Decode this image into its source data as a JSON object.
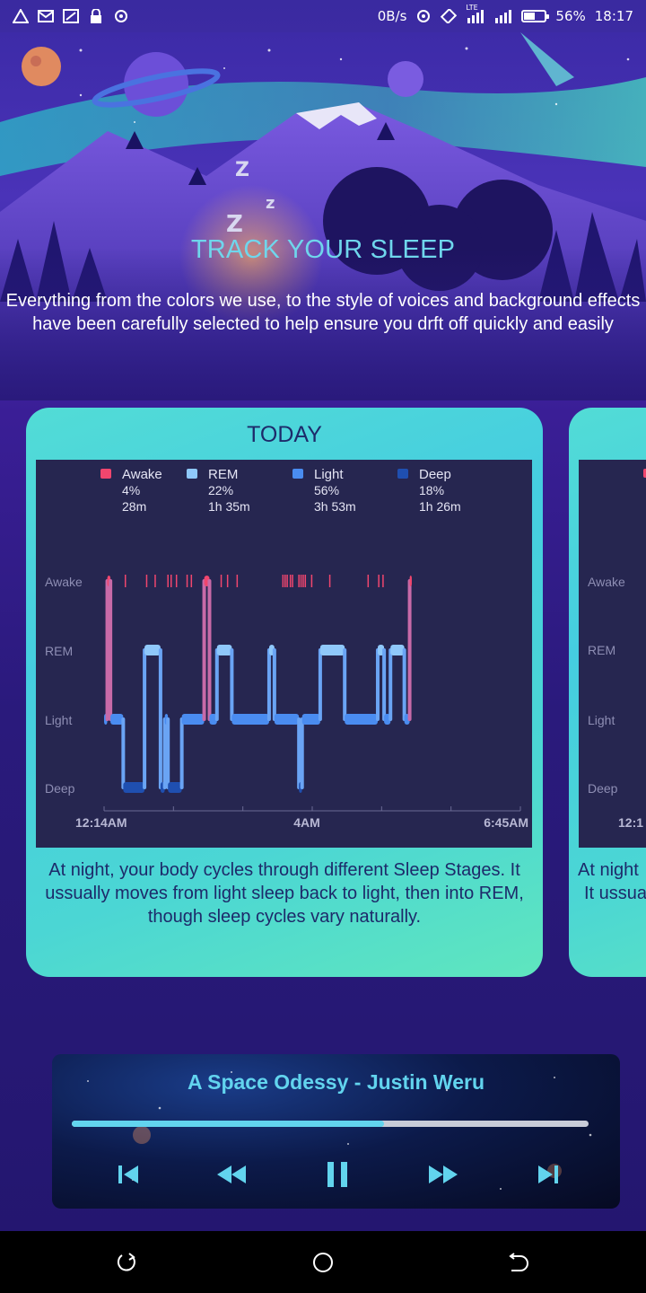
{
  "status_bar": {
    "left_icons": [
      "warning-icon",
      "mail-icon",
      "cast-icon",
      "lock-icon",
      "record-icon"
    ],
    "net_speed": "0B/s",
    "network_badge": "LTE",
    "battery_percent": "56%",
    "battery_level": 0.56,
    "time": "18:17"
  },
  "header": {
    "title": "TRACK YOUR SLEEP",
    "description": "Everything from the colors we use, to the style of voices and background effects have been carefully selected to help ensure you drft off quickly and easily"
  },
  "card": {
    "title": "TODAY",
    "description": "At night, your body cycles through different Sleep Stages. It ussually moves from light sleep back to light, then into REM, though sleep cycles vary naturally."
  },
  "next_card": {
    "description_line1": "At night",
    "description_line2": "It ussua",
    "y_labels": [
      "Awake",
      "REM",
      "Light",
      "Deep"
    ],
    "x_label_first": "12:1"
  },
  "chart_data": {
    "type": "line",
    "stages": [
      "Awake",
      "REM",
      "Light",
      "Deep"
    ],
    "legend": [
      {
        "name": "Awake",
        "percent": "4%",
        "duration": "28m",
        "color": "#f0466e"
      },
      {
        "name": "REM",
        "percent": "22%",
        "duration": "1h 35m",
        "color": "#8fc8fa"
      },
      {
        "name": "Light",
        "percent": "56%",
        "duration": "3h 53m",
        "color": "#4a8cf0"
      },
      {
        "name": "Deep",
        "percent": "18%",
        "duration": "1h 26m",
        "color": "#1f4fb0"
      }
    ],
    "x_tick_labels": [
      "12:14AM",
      "4AM",
      "6:45AM"
    ],
    "x_range_minutes": [
      0,
      391
    ],
    "hypnogram": [
      {
        "start": 0,
        "end": 3,
        "stage": "Light"
      },
      {
        "start": 3,
        "end": 6,
        "stage": "Awake"
      },
      {
        "start": 6,
        "end": 18,
        "stage": "Light"
      },
      {
        "start": 18,
        "end": 38,
        "stage": "Deep"
      },
      {
        "start": 38,
        "end": 53,
        "stage": "REM"
      },
      {
        "start": 53,
        "end": 57,
        "stage": "Deep"
      },
      {
        "start": 57,
        "end": 60,
        "stage": "Light"
      },
      {
        "start": 60,
        "end": 73,
        "stage": "Deep"
      },
      {
        "start": 73,
        "end": 94,
        "stage": "Light"
      },
      {
        "start": 94,
        "end": 99,
        "stage": "Awake"
      },
      {
        "start": 99,
        "end": 106,
        "stage": "Light"
      },
      {
        "start": 106,
        "end": 120,
        "stage": "REM"
      },
      {
        "start": 120,
        "end": 155,
        "stage": "Light"
      },
      {
        "start": 155,
        "end": 160,
        "stage": "REM"
      },
      {
        "start": 160,
        "end": 183,
        "stage": "Light"
      },
      {
        "start": 183,
        "end": 186,
        "stage": "Deep"
      },
      {
        "start": 186,
        "end": 203,
        "stage": "Light"
      },
      {
        "start": 203,
        "end": 226,
        "stage": "REM"
      },
      {
        "start": 226,
        "end": 257,
        "stage": "Light"
      },
      {
        "start": 257,
        "end": 263,
        "stage": "REM"
      },
      {
        "start": 263,
        "end": 269,
        "stage": "Light"
      },
      {
        "start": 269,
        "end": 282,
        "stage": "REM"
      },
      {
        "start": 282,
        "end": 287,
        "stage": "Light"
      },
      {
        "start": 287,
        "end": 289,
        "stage": "Awake"
      }
    ],
    "awake_markers_minutes": [
      20,
      40,
      48,
      60,
      63,
      68,
      78,
      82,
      110,
      116,
      125,
      168,
      170,
      172,
      175,
      177,
      183,
      185,
      187,
      189,
      195,
      212,
      248,
      258,
      262
    ]
  },
  "player": {
    "track_title": "A Space Odessy - Justin Weru",
    "progress": 0.605,
    "controls": [
      "skip-previous-icon",
      "rewind-icon",
      "pause-icon",
      "fast-forward-icon",
      "skip-next-icon"
    ]
  },
  "nav_bar": {
    "buttons": [
      "back-icon",
      "home-icon",
      "recents-icon"
    ]
  }
}
